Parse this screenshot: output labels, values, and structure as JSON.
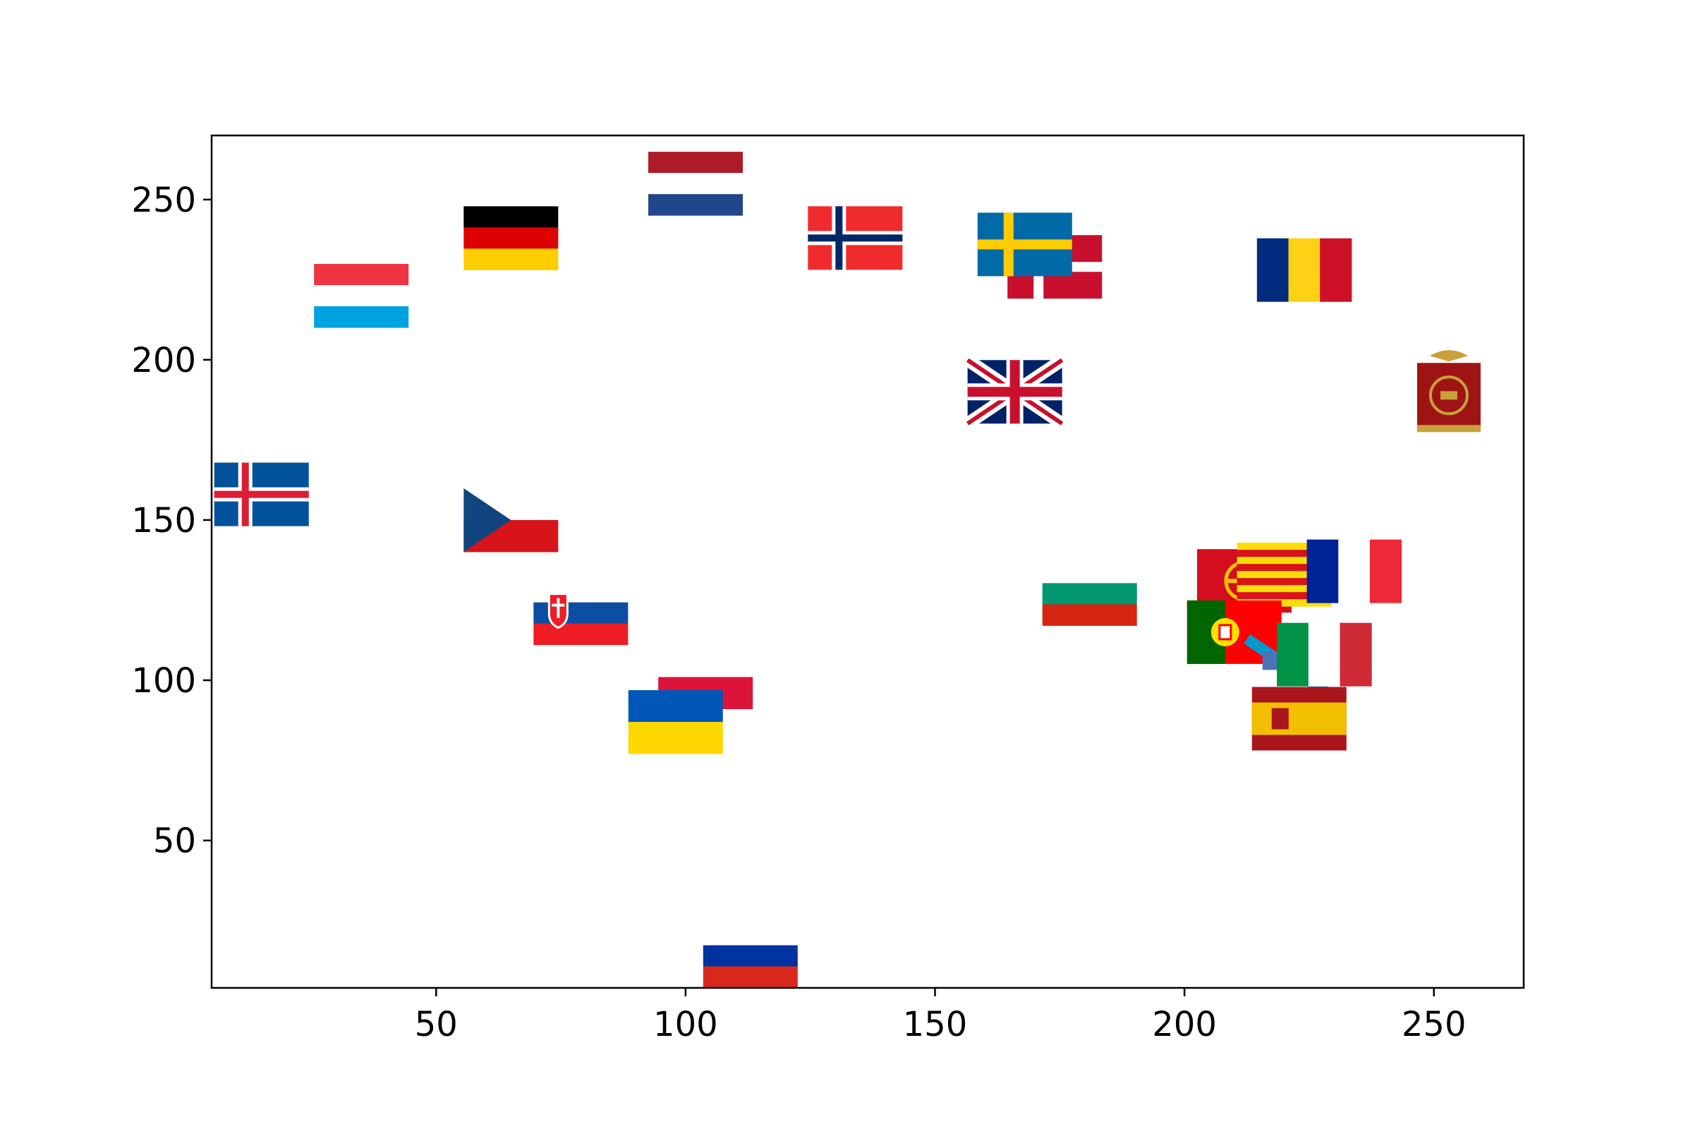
{
  "chart_data": {
    "type": "scatter",
    "title": "",
    "xlabel": "",
    "ylabel": "",
    "xlim": [
      5,
      268
    ],
    "ylim": [
      4,
      270
    ],
    "x_ticks": [
      50,
      100,
      150,
      200,
      250
    ],
    "y_ticks": [
      50,
      100,
      150,
      200,
      250
    ],
    "grid": false,
    "legend": "none",
    "marker": "flag images",
    "points": [
      {
        "flag": "iceland-flag",
        "x": 15,
        "y": 158
      },
      {
        "flag": "luxembourg-flag",
        "x": 35,
        "y": 220
      },
      {
        "flag": "germany-flag",
        "x": 65,
        "y": 238
      },
      {
        "flag": "netherlands-flag",
        "x": 102,
        "y": 255
      },
      {
        "flag": "norway-flag",
        "x": 134,
        "y": 238
      },
      {
        "flag": "denmark-flag",
        "x": 174,
        "y": 229
      },
      {
        "flag": "sweden-flag",
        "x": 168,
        "y": 236
      },
      {
        "flag": "romania-flag",
        "x": 224,
        "y": 228
      },
      {
        "flag": "united-kingdom-flag",
        "x": 166,
        "y": 190
      },
      {
        "flag": "roman-empire-vexillum",
        "x": 253,
        "y": 190
      },
      {
        "flag": "czech-republic-flag",
        "x": 65,
        "y": 150
      },
      {
        "flag": "slovakia-flag",
        "x": 79,
        "y": 121
      },
      {
        "flag": "bulgaria-flag",
        "x": 181,
        "y": 127
      },
      {
        "flag": "occitania-flag",
        "x": 212,
        "y": 131
      },
      {
        "flag": "catalonia-flag",
        "x": 220,
        "y": 133
      },
      {
        "flag": "france-flag",
        "x": 234,
        "y": 134
      },
      {
        "flag": "portugal-flag",
        "x": 210,
        "y": 115
      },
      {
        "flag": "galicia-flag",
        "x": 222,
        "y": 103
      },
      {
        "flag": "italy-flag",
        "x": 228,
        "y": 108
      },
      {
        "flag": "poland-flag",
        "x": 104,
        "y": 101
      },
      {
        "flag": "ukraine-flag",
        "x": 98,
        "y": 87
      },
      {
        "flag": "spain-flag",
        "x": 223,
        "y": 88
      },
      {
        "flag": "russia-flag",
        "x": 113,
        "y": 14
      }
    ]
  }
}
